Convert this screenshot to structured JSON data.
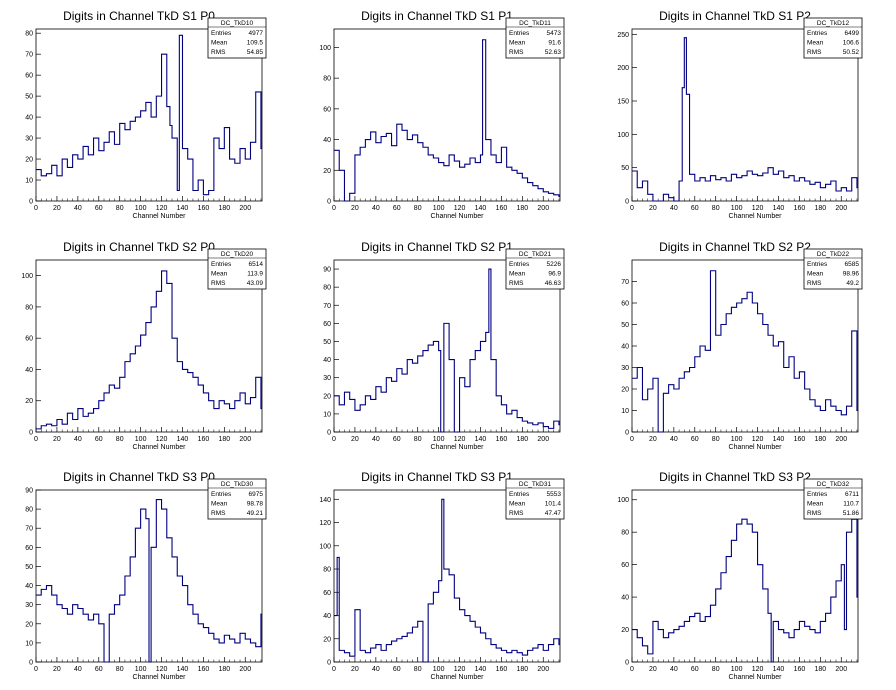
{
  "page": {
    "background": "#ffffff",
    "line_color": "#000080"
  },
  "chart_data": [
    {
      "type": "line",
      "title": "Digits in Channel TkD S1 P0",
      "xlabel": "Channel Number",
      "xlim": [
        0,
        216
      ],
      "ylim": [
        0,
        82
      ],
      "xticks": [
        0,
        20,
        40,
        60,
        80,
        100,
        120,
        140,
        160,
        180,
        200
      ],
      "yticks": [
        0,
        10,
        20,
        30,
        40,
        50,
        60,
        70,
        80
      ],
      "stats": {
        "name": "DC_TkD10",
        "entries": "4977",
        "mean": "109.5",
        "rms": "54.85"
      },
      "series": [
        {
          "x": [
            0,
            5,
            10,
            15,
            20,
            25,
            30,
            35,
            40,
            45,
            50,
            55,
            60,
            65,
            70,
            75,
            80,
            85,
            90,
            95,
            100,
            105,
            110,
            115,
            120,
            125,
            128,
            130,
            135,
            137,
            140,
            145,
            150,
            155,
            160,
            165,
            170,
            175,
            180,
            185,
            190,
            195,
            200,
            205,
            210,
            215
          ],
          "y": [
            15,
            12,
            13,
            17,
            12,
            20,
            16,
            22,
            20,
            26,
            22,
            30,
            24,
            28,
            33,
            27,
            37,
            34,
            38,
            40,
            43,
            47,
            40,
            50,
            70,
            45,
            36,
            30,
            5,
            79,
            25,
            20,
            5,
            10,
            3,
            5,
            30,
            25,
            35,
            20,
            18,
            25,
            20,
            28,
            52,
            25
          ]
        }
      ]
    },
    {
      "type": "line",
      "title": "Digits in Channel TkD S1 P1",
      "xlabel": "Channel Number",
      "xlim": [
        0,
        216
      ],
      "ylim": [
        0,
        112
      ],
      "xticks": [
        0,
        20,
        40,
        60,
        80,
        100,
        120,
        140,
        160,
        180,
        200
      ],
      "yticks": [
        0,
        20,
        40,
        60,
        80,
        100
      ],
      "stats": {
        "name": "DC_TkD11",
        "entries": "5473",
        "mean": "91.6",
        "rms": "52.63"
      },
      "series": [
        {
          "x": [
            0,
            5,
            10,
            15,
            20,
            25,
            30,
            35,
            40,
            45,
            50,
            55,
            60,
            65,
            70,
            75,
            80,
            85,
            90,
            95,
            100,
            105,
            110,
            115,
            120,
            125,
            130,
            135,
            140,
            142,
            145,
            150,
            155,
            160,
            165,
            170,
            175,
            180,
            185,
            190,
            195,
            200,
            205,
            210,
            215
          ],
          "y": [
            33,
            20,
            0,
            5,
            30,
            35,
            40,
            45,
            38,
            42,
            44,
            36,
            50,
            46,
            40,
            43,
            38,
            35,
            30,
            28,
            25,
            23,
            30,
            26,
            22,
            24,
            28,
            25,
            30,
            105,
            40,
            30,
            25,
            35,
            22,
            20,
            18,
            15,
            12,
            10,
            8,
            6,
            5,
            4,
            3
          ]
        }
      ]
    },
    {
      "type": "line",
      "title": "Digits in Channel TkD S1 P2",
      "xlabel": "Channel Number",
      "xlim": [
        0,
        216
      ],
      "ylim": [
        0,
        258
      ],
      "xticks": [
        0,
        20,
        40,
        60,
        80,
        100,
        120,
        140,
        160,
        180,
        200
      ],
      "yticks": [
        0,
        50,
        100,
        150,
        200,
        250
      ],
      "stats": {
        "name": "DC_TkD12",
        "entries": "6499",
        "mean": "106.6",
        "rms": "50.52"
      },
      "series": [
        {
          "x": [
            0,
            5,
            10,
            15,
            20,
            25,
            30,
            35,
            40,
            45,
            48,
            50,
            52,
            55,
            60,
            65,
            70,
            75,
            80,
            85,
            90,
            95,
            100,
            105,
            110,
            115,
            120,
            125,
            130,
            135,
            140,
            145,
            150,
            155,
            160,
            165,
            170,
            175,
            180,
            185,
            190,
            195,
            200,
            205,
            210,
            215
          ],
          "y": [
            45,
            20,
            30,
            10,
            0,
            0,
            10,
            5,
            0,
            30,
            170,
            245,
            160,
            40,
            30,
            35,
            30,
            38,
            32,
            35,
            30,
            40,
            35,
            38,
            45,
            40,
            38,
            42,
            50,
            40,
            45,
            35,
            38,
            30,
            35,
            30,
            25,
            28,
            20,
            25,
            30,
            15,
            20,
            15,
            35,
            20
          ]
        }
      ]
    },
    {
      "type": "line",
      "title": "Digits in Channel TkD S2 P0",
      "xlabel": "Channel Number",
      "xlim": [
        0,
        216
      ],
      "ylim": [
        0,
        110
      ],
      "xticks": [
        0,
        20,
        40,
        60,
        80,
        100,
        120,
        140,
        160,
        180,
        200
      ],
      "yticks": [
        0,
        20,
        40,
        60,
        80,
        100
      ],
      "stats": {
        "name": "DC_TkD20",
        "entries": "6514",
        "mean": "113.9",
        "rms": "43.09"
      },
      "series": [
        {
          "x": [
            0,
            5,
            10,
            15,
            20,
            25,
            30,
            35,
            40,
            45,
            50,
            55,
            60,
            65,
            70,
            75,
            80,
            85,
            90,
            95,
            100,
            105,
            110,
            115,
            120,
            125,
            130,
            135,
            140,
            145,
            150,
            155,
            160,
            165,
            170,
            175,
            180,
            185,
            190,
            195,
            200,
            205,
            210,
            215
          ],
          "y": [
            2,
            4,
            5,
            4,
            8,
            5,
            12,
            8,
            15,
            10,
            12,
            15,
            20,
            25,
            30,
            28,
            35,
            45,
            50,
            55,
            62,
            70,
            80,
            90,
            103,
            95,
            60,
            45,
            40,
            38,
            35,
            30,
            25,
            20,
            15,
            20,
            18,
            15,
            20,
            25,
            18,
            22,
            35,
            15
          ]
        }
      ]
    },
    {
      "type": "line",
      "title": "Digits in Channel TkD S2 P1",
      "xlabel": "Channel Number",
      "xlim": [
        0,
        216
      ],
      "ylim": [
        0,
        95
      ],
      "xticks": [
        0,
        20,
        40,
        60,
        80,
        100,
        120,
        140,
        160,
        180,
        200
      ],
      "yticks": [
        0,
        10,
        20,
        30,
        40,
        50,
        60,
        70,
        80,
        90
      ],
      "stats": {
        "name": "DC_TkD21",
        "entries": "5226",
        "mean": "96.9",
        "rms": "46.63"
      },
      "series": [
        {
          "x": [
            0,
            5,
            10,
            15,
            20,
            25,
            30,
            35,
            40,
            45,
            50,
            55,
            60,
            65,
            70,
            75,
            80,
            85,
            90,
            95,
            100,
            102,
            105,
            110,
            115,
            120,
            125,
            130,
            135,
            140,
            145,
            148,
            150,
            155,
            160,
            165,
            170,
            175,
            180,
            185,
            190,
            195,
            200,
            205,
            210,
            215
          ],
          "y": [
            20,
            15,
            22,
            18,
            12,
            15,
            20,
            18,
            25,
            22,
            30,
            28,
            35,
            32,
            40,
            38,
            42,
            45,
            48,
            50,
            45,
            0,
            60,
            40,
            0,
            30,
            25,
            40,
            45,
            50,
            55,
            90,
            40,
            20,
            15,
            10,
            12,
            8,
            6,
            5,
            4,
            5,
            3,
            2,
            6,
            4
          ]
        }
      ]
    },
    {
      "type": "line",
      "title": "Digits in Channel TkD S2 P2",
      "xlabel": "Channel Number",
      "xlim": [
        0,
        216
      ],
      "ylim": [
        0,
        80
      ],
      "xticks": [
        0,
        20,
        40,
        60,
        80,
        100,
        120,
        140,
        160,
        180,
        200
      ],
      "yticks": [
        0,
        10,
        20,
        30,
        40,
        50,
        60,
        70
      ],
      "stats": {
        "name": "DC_TkD22",
        "entries": "6585",
        "mean": "98.96",
        "rms": "49.2"
      },
      "series": [
        {
          "x": [
            0,
            5,
            10,
            15,
            20,
            25,
            30,
            35,
            40,
            45,
            50,
            55,
            60,
            65,
            70,
            75,
            80,
            85,
            90,
            95,
            100,
            105,
            110,
            115,
            120,
            125,
            130,
            135,
            140,
            145,
            150,
            155,
            160,
            165,
            170,
            175,
            180,
            185,
            190,
            195,
            200,
            205,
            210,
            215
          ],
          "y": [
            25,
            30,
            15,
            20,
            25,
            0,
            18,
            22,
            20,
            25,
            28,
            30,
            35,
            40,
            38,
            75,
            45,
            50,
            55,
            58,
            60,
            62,
            65,
            60,
            55,
            50,
            45,
            40,
            42,
            30,
            35,
            25,
            28,
            20,
            15,
            12,
            10,
            15,
            12,
            10,
            8,
            12,
            47,
            10
          ]
        }
      ]
    },
    {
      "type": "line",
      "title": "Digits in Channel TkD S3 P0",
      "xlabel": "Channel Number",
      "xlim": [
        0,
        216
      ],
      "ylim": [
        0,
        90
      ],
      "xticks": [
        0,
        20,
        40,
        60,
        80,
        100,
        120,
        140,
        160,
        180,
        200
      ],
      "yticks": [
        0,
        10,
        20,
        30,
        40,
        50,
        60,
        70,
        80,
        90
      ],
      "stats": {
        "name": "DC_TkD30",
        "entries": "6975",
        "mean": "98.78",
        "rms": "49.21"
      },
      "series": [
        {
          "x": [
            0,
            5,
            10,
            15,
            20,
            25,
            30,
            35,
            40,
            45,
            50,
            55,
            60,
            65,
            70,
            75,
            80,
            85,
            90,
            95,
            100,
            105,
            108,
            110,
            115,
            120,
            125,
            130,
            135,
            140,
            145,
            150,
            155,
            160,
            165,
            170,
            175,
            180,
            185,
            190,
            195,
            200,
            205,
            210,
            215
          ],
          "y": [
            35,
            38,
            40,
            35,
            30,
            28,
            25,
            30,
            28,
            25,
            22,
            25,
            20,
            0,
            25,
            30,
            35,
            45,
            55,
            70,
            80,
            75,
            0,
            60,
            85,
            80,
            65,
            55,
            45,
            40,
            30,
            25,
            20,
            18,
            15,
            12,
            10,
            14,
            12,
            10,
            15,
            12,
            10,
            8,
            25
          ]
        }
      ]
    },
    {
      "type": "line",
      "title": "Digits in Channel TkD S3 P1",
      "xlabel": "Channel Number",
      "xlim": [
        0,
        216
      ],
      "ylim": [
        0,
        148
      ],
      "xticks": [
        0,
        20,
        40,
        60,
        80,
        100,
        120,
        140,
        160,
        180,
        200
      ],
      "yticks": [
        0,
        20,
        40,
        60,
        80,
        100,
        120,
        140
      ],
      "stats": {
        "name": "DC_TkD31",
        "entries": "5553",
        "mean": "101.4",
        "rms": "47.47"
      },
      "series": [
        {
          "x": [
            0,
            3,
            5,
            10,
            15,
            20,
            25,
            30,
            35,
            40,
            45,
            50,
            55,
            60,
            65,
            70,
            75,
            80,
            85,
            90,
            95,
            100,
            103,
            105,
            110,
            115,
            120,
            125,
            130,
            135,
            140,
            145,
            150,
            155,
            160,
            165,
            170,
            175,
            180,
            185,
            190,
            195,
            200,
            205,
            210,
            215
          ],
          "y": [
            40,
            90,
            10,
            8,
            5,
            45,
            10,
            8,
            12,
            15,
            10,
            15,
            18,
            20,
            22,
            25,
            30,
            35,
            0,
            50,
            60,
            70,
            140,
            80,
            75,
            55,
            45,
            40,
            35,
            30,
            25,
            20,
            15,
            12,
            10,
            8,
            10,
            8,
            6,
            10,
            12,
            15,
            10,
            15,
            20,
            15
          ]
        }
      ]
    },
    {
      "type": "line",
      "title": "Digits in Channel TkD S3 P2",
      "xlabel": "Channel Number",
      "xlim": [
        0,
        216
      ],
      "ylim": [
        0,
        106
      ],
      "xticks": [
        0,
        20,
        40,
        60,
        80,
        100,
        120,
        140,
        160,
        180,
        200
      ],
      "yticks": [
        0,
        20,
        40,
        60,
        80,
        100
      ],
      "stats": {
        "name": "DC_TkD32",
        "entries": "6711",
        "mean": "110.7",
        "rms": "51.86"
      },
      "series": [
        {
          "x": [
            0,
            5,
            10,
            15,
            20,
            25,
            30,
            35,
            40,
            45,
            50,
            55,
            60,
            65,
            70,
            75,
            80,
            85,
            90,
            95,
            100,
            105,
            110,
            115,
            120,
            125,
            130,
            133,
            135,
            140,
            145,
            150,
            155,
            160,
            165,
            170,
            175,
            180,
            185,
            190,
            195,
            200,
            203,
            205,
            210,
            215
          ],
          "y": [
            20,
            15,
            10,
            5,
            25,
            20,
            15,
            18,
            20,
            22,
            25,
            28,
            30,
            25,
            28,
            35,
            45,
            55,
            65,
            75,
            85,
            88,
            85,
            80,
            60,
            45,
            30,
            0,
            25,
            20,
            18,
            15,
            20,
            25,
            22,
            20,
            18,
            25,
            30,
            40,
            50,
            60,
            20,
            80,
            88,
            40
          ]
        }
      ]
    }
  ]
}
